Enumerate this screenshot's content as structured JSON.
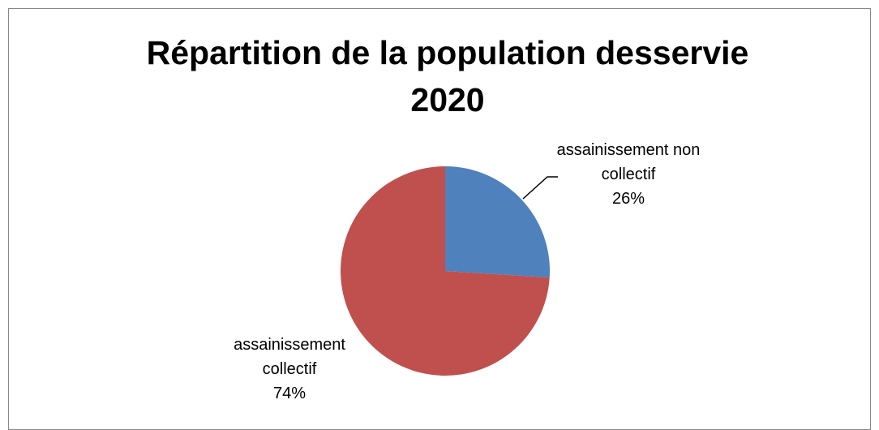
{
  "chart_data": {
    "type": "pie",
    "title": "Répartition de la population desservie 2020",
    "categories": [
      "assainissement non collectif",
      "assainissement collectif"
    ],
    "values": [
      26,
      74
    ],
    "value_labels": [
      "26%",
      "74%"
    ],
    "colors": [
      "#4f81bd",
      "#c0504d"
    ]
  }
}
